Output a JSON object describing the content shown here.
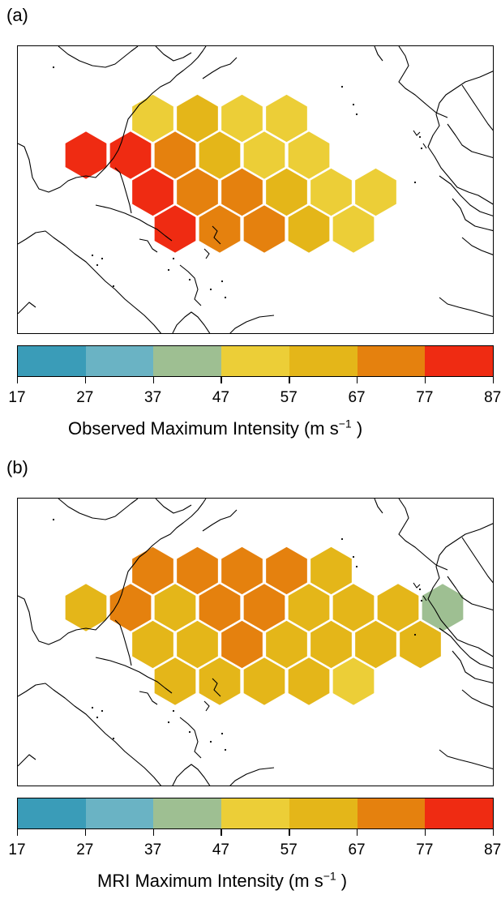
{
  "colorbar": {
    "ticks": [
      "17",
      "27",
      "37",
      "47",
      "57",
      "67",
      "77",
      "87"
    ],
    "colors": [
      "#3a9cb8",
      "#6ab3c4",
      "#9ebf92",
      "#ecce37",
      "#e4b619",
      "#e5810e",
      "#ef2b12"
    ]
  },
  "panels": [
    {
      "label": "(a)",
      "title_main": "Observed Maximum Intensity (m  s",
      "title_sup": "−1",
      "title_end": " )",
      "cells": [
        {
          "col": 3,
          "row": 0,
          "bin": 3
        },
        {
          "col": 5,
          "row": 0,
          "bin": 4
        },
        {
          "col": 7,
          "row": 0,
          "bin": 3
        },
        {
          "col": 9,
          "row": 0,
          "bin": 3
        },
        {
          "col": 0,
          "row": 1,
          "bin": 6
        },
        {
          "col": 2,
          "row": 1,
          "bin": 6
        },
        {
          "col": 4,
          "row": 1,
          "bin": 5
        },
        {
          "col": 6,
          "row": 1,
          "bin": 4
        },
        {
          "col": 8,
          "row": 1,
          "bin": 3
        },
        {
          "col": 10,
          "row": 1,
          "bin": 3
        },
        {
          "col": 3,
          "row": 2,
          "bin": 6
        },
        {
          "col": 5,
          "row": 2,
          "bin": 5
        },
        {
          "col": 7,
          "row": 2,
          "bin": 5
        },
        {
          "col": 9,
          "row": 2,
          "bin": 4
        },
        {
          "col": 11,
          "row": 2,
          "bin": 3
        },
        {
          "col": 13,
          "row": 2,
          "bin": 3
        },
        {
          "col": 4,
          "row": 3,
          "bin": 6
        },
        {
          "col": 6,
          "row": 3,
          "bin": 5
        },
        {
          "col": 8,
          "row": 3,
          "bin": 5
        },
        {
          "col": 10,
          "row": 3,
          "bin": 4
        },
        {
          "col": 12,
          "row": 3,
          "bin": 3
        }
      ]
    },
    {
      "label": "(b)",
      "title_main": "MRI Maximum Intensity (m  s",
      "title_sup": "−1",
      "title_end": " )",
      "cells": [
        {
          "col": 3,
          "row": 0,
          "bin": 5
        },
        {
          "col": 5,
          "row": 0,
          "bin": 5
        },
        {
          "col": 7,
          "row": 0,
          "bin": 5
        },
        {
          "col": 9,
          "row": 0,
          "bin": 5
        },
        {
          "col": 11,
          "row": 0,
          "bin": 4
        },
        {
          "col": 0,
          "row": 1,
          "bin": 4
        },
        {
          "col": 2,
          "row": 1,
          "bin": 5
        },
        {
          "col": 4,
          "row": 1,
          "bin": 4
        },
        {
          "col": 6,
          "row": 1,
          "bin": 5
        },
        {
          "col": 8,
          "row": 1,
          "bin": 5
        },
        {
          "col": 10,
          "row": 1,
          "bin": 4
        },
        {
          "col": 12,
          "row": 1,
          "bin": 4
        },
        {
          "col": 14,
          "row": 1,
          "bin": 4
        },
        {
          "col": 16,
          "row": 1,
          "bin": 2
        },
        {
          "col": 3,
          "row": 2,
          "bin": 4
        },
        {
          "col": 5,
          "row": 2,
          "bin": 4
        },
        {
          "col": 7,
          "row": 2,
          "bin": 5
        },
        {
          "col": 9,
          "row": 2,
          "bin": 4
        },
        {
          "col": 11,
          "row": 2,
          "bin": 4
        },
        {
          "col": 13,
          "row": 2,
          "bin": 4
        },
        {
          "col": 15,
          "row": 2,
          "bin": 4
        },
        {
          "col": 4,
          "row": 3,
          "bin": 4
        },
        {
          "col": 6,
          "row": 3,
          "bin": 4
        },
        {
          "col": 8,
          "row": 3,
          "bin": 4
        },
        {
          "col": 10,
          "row": 3,
          "bin": 4
        },
        {
          "col": 12,
          "row": 3,
          "bin": 3
        }
      ]
    }
  ]
}
